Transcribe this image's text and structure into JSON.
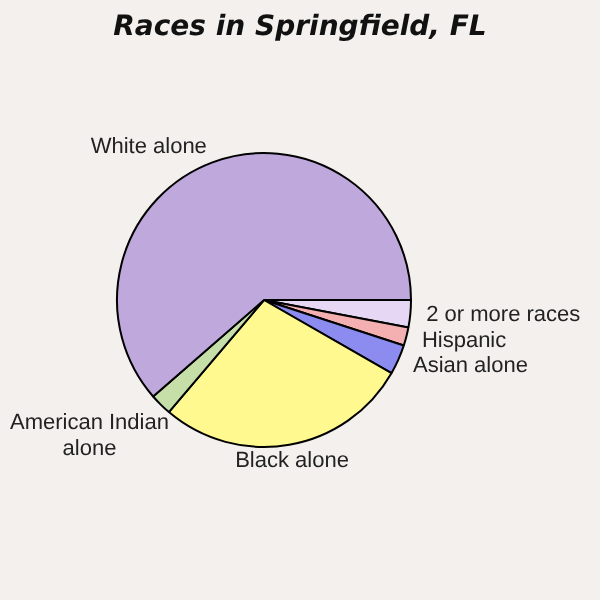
{
  "chart_data": {
    "type": "pie",
    "title": "Races in Springfield, FL",
    "categories": [
      "2 or more races",
      "Hispanic",
      "Asian alone",
      "Black alone",
      "American Indian alone",
      "White alone"
    ],
    "values": [
      3.0,
      2.0,
      3.3,
      27.9,
      2.4,
      61.4
    ],
    "colors": [
      "#e6d8f4",
      "#f4b0b0",
      "#8c8cf0",
      "#fff990",
      "#c6dea8",
      "#bfa8dc"
    ],
    "legend": false
  }
}
